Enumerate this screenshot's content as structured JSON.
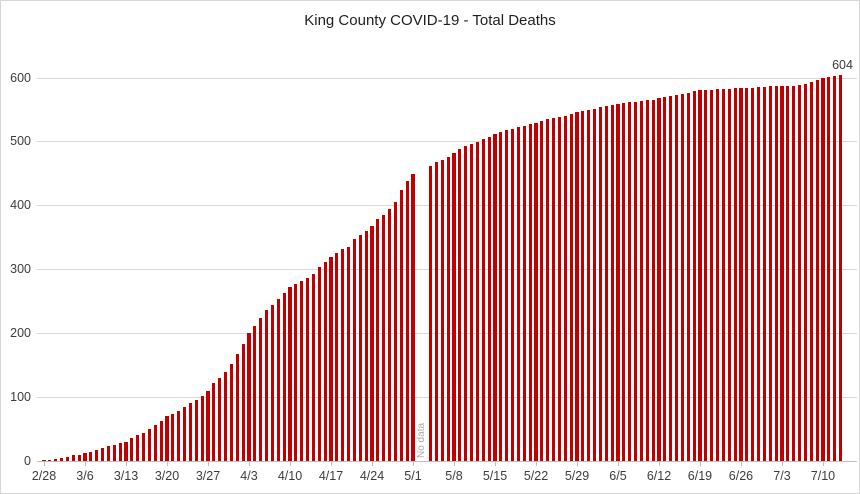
{
  "chart_data": {
    "type": "bar",
    "title": "King County COVID-19 - Total Deaths",
    "xlabel": "",
    "ylabel": "",
    "ylim": [
      0,
      600
    ],
    "grid": true,
    "legend": false,
    "bar_color": "#C00000",
    "gridline_color": "#D9D9D9",
    "axis_color": "#BFBFBF",
    "label_color": "#3D3D3D",
    "no_data_color": "#A9A9A9",
    "y_ticks": [
      0,
      100,
      200,
      300,
      400,
      500,
      600
    ],
    "x_tick_labels": [
      "2/28",
      "3/6",
      "3/13",
      "3/20",
      "3/27",
      "4/3",
      "4/10",
      "4/17",
      "4/24",
      "5/1",
      "5/8",
      "5/15",
      "5/22",
      "5/29",
      "6/5",
      "6/12",
      "6/19",
      "6/26",
      "7/3",
      "7/10"
    ],
    "x_tick_interval_days": 7,
    "x": [
      "2/28",
      "2/29",
      "3/1",
      "3/2",
      "3/3",
      "3/4",
      "3/5",
      "3/6",
      "3/7",
      "3/8",
      "3/9",
      "3/10",
      "3/11",
      "3/12",
      "3/13",
      "3/14",
      "3/15",
      "3/16",
      "3/17",
      "3/18",
      "3/19",
      "3/20",
      "3/21",
      "3/22",
      "3/23",
      "3/24",
      "3/25",
      "3/26",
      "3/27",
      "3/28",
      "3/29",
      "3/30",
      "3/31",
      "4/1",
      "4/2",
      "4/3",
      "4/4",
      "4/5",
      "4/6",
      "4/7",
      "4/8",
      "4/9",
      "4/10",
      "4/11",
      "4/12",
      "4/13",
      "4/14",
      "4/15",
      "4/16",
      "4/17",
      "4/18",
      "4/19",
      "4/20",
      "4/21",
      "4/22",
      "4/23",
      "4/24",
      "4/25",
      "4/26",
      "4/27",
      "4/28",
      "4/29",
      "4/30",
      "5/1",
      "5/2",
      "5/3",
      "5/4",
      "5/5",
      "5/6",
      "5/7",
      "5/8",
      "5/9",
      "5/10",
      "5/11",
      "5/12",
      "5/13",
      "5/14",
      "5/15",
      "5/16",
      "5/17",
      "5/18",
      "5/19",
      "5/20",
      "5/21",
      "5/22",
      "5/23",
      "5/24",
      "5/25",
      "5/26",
      "5/27",
      "5/28",
      "5/29",
      "5/30",
      "5/31",
      "6/1",
      "6/2",
      "6/3",
      "6/4",
      "6/5",
      "6/6",
      "6/7",
      "6/8",
      "6/9",
      "6/10",
      "6/11",
      "6/12",
      "6/13",
      "6/14",
      "6/15",
      "6/16",
      "6/17",
      "6/18",
      "6/19",
      "6/20",
      "6/21",
      "6/22",
      "6/23",
      "6/24",
      "6/25",
      "6/26",
      "6/27",
      "6/28",
      "6/29",
      "6/30",
      "7/1",
      "7/2",
      "7/3",
      "7/4",
      "7/5",
      "7/6",
      "7/7",
      "7/8",
      "7/9",
      "7/10",
      "7/11",
      "7/12",
      "7/13"
    ],
    "values": [
      1,
      2,
      3,
      5,
      7,
      9,
      10,
      12,
      14,
      17,
      20,
      23,
      25,
      28,
      30,
      36,
      40,
      44,
      50,
      56,
      63,
      70,
      74,
      78,
      85,
      91,
      95,
      102,
      110,
      122,
      130,
      140,
      152,
      168,
      184,
      200,
      212,
      224,
      236,
      245,
      254,
      263,
      272,
      278,
      282,
      286,
      293,
      304,
      312,
      320,
      326,
      332,
      336,
      347,
      354,
      360,
      368,
      379,
      385,
      394,
      406,
      424,
      438,
      450,
      null,
      null,
      462,
      468,
      472,
      477,
      483,
      489,
      493,
      497,
      500,
      504,
      508,
      512,
      515,
      518,
      520,
      523,
      525,
      528,
      530,
      533,
      535,
      537,
      539,
      541,
      543,
      546,
      548,
      550,
      552,
      554,
      556,
      558,
      560,
      561,
      562,
      563,
      564,
      565,
      566,
      568,
      570,
      572,
      573,
      575,
      577,
      579,
      581,
      581,
      581,
      582,
      583,
      583,
      584,
      584,
      585,
      585,
      586,
      586,
      587,
      587,
      588,
      588,
      588,
      589,
      591,
      594,
      597,
      600,
      602,
      603,
      604
    ],
    "annotations": {
      "no_data": {
        "label": "No data",
        "dates": [
          "5/2",
          "5/3"
        ]
      },
      "last_value": {
        "label": "604",
        "date": "7/13"
      }
    }
  }
}
